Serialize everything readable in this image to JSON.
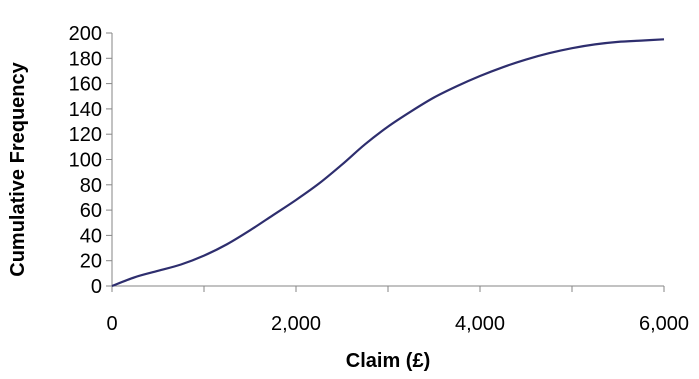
{
  "chart_data": {
    "type": "line",
    "xlabel": "Claim (£)",
    "ylabel": "Cumulative Frequency",
    "xlim": [
      0,
      6000
    ],
    "ylim": [
      0,
      200
    ],
    "x_ticks": [
      0,
      2000,
      4000,
      6000
    ],
    "x_tick_labels": [
      "0",
      "2,000",
      "4,000",
      "6,000"
    ],
    "y_ticks": [
      0,
      20,
      40,
      60,
      80,
      100,
      120,
      140,
      160,
      180,
      200
    ],
    "y_tick_labels": [
      "0",
      "20",
      "40",
      "60",
      "80",
      "100",
      "120",
      "140",
      "160",
      "180",
      "200"
    ],
    "grid": false,
    "legend": "none",
    "series": [
      {
        "color": "#2e2e6e",
        "x": [
          0,
          250,
          500,
          750,
          1000,
          1250,
          1500,
          1750,
          2000,
          2250,
          2500,
          2750,
          3000,
          3250,
          3500,
          3750,
          4000,
          4250,
          4500,
          4750,
          5000,
          5250,
          5500,
          5750,
          6000
        ],
        "y": [
          0,
          7,
          12,
          17,
          24,
          33,
          44,
          56,
          68,
          81,
          96,
          112,
          126,
          138,
          149,
          158,
          166,
          173,
          179,
          184,
          188,
          191,
          193,
          194,
          195
        ]
      }
    ]
  }
}
